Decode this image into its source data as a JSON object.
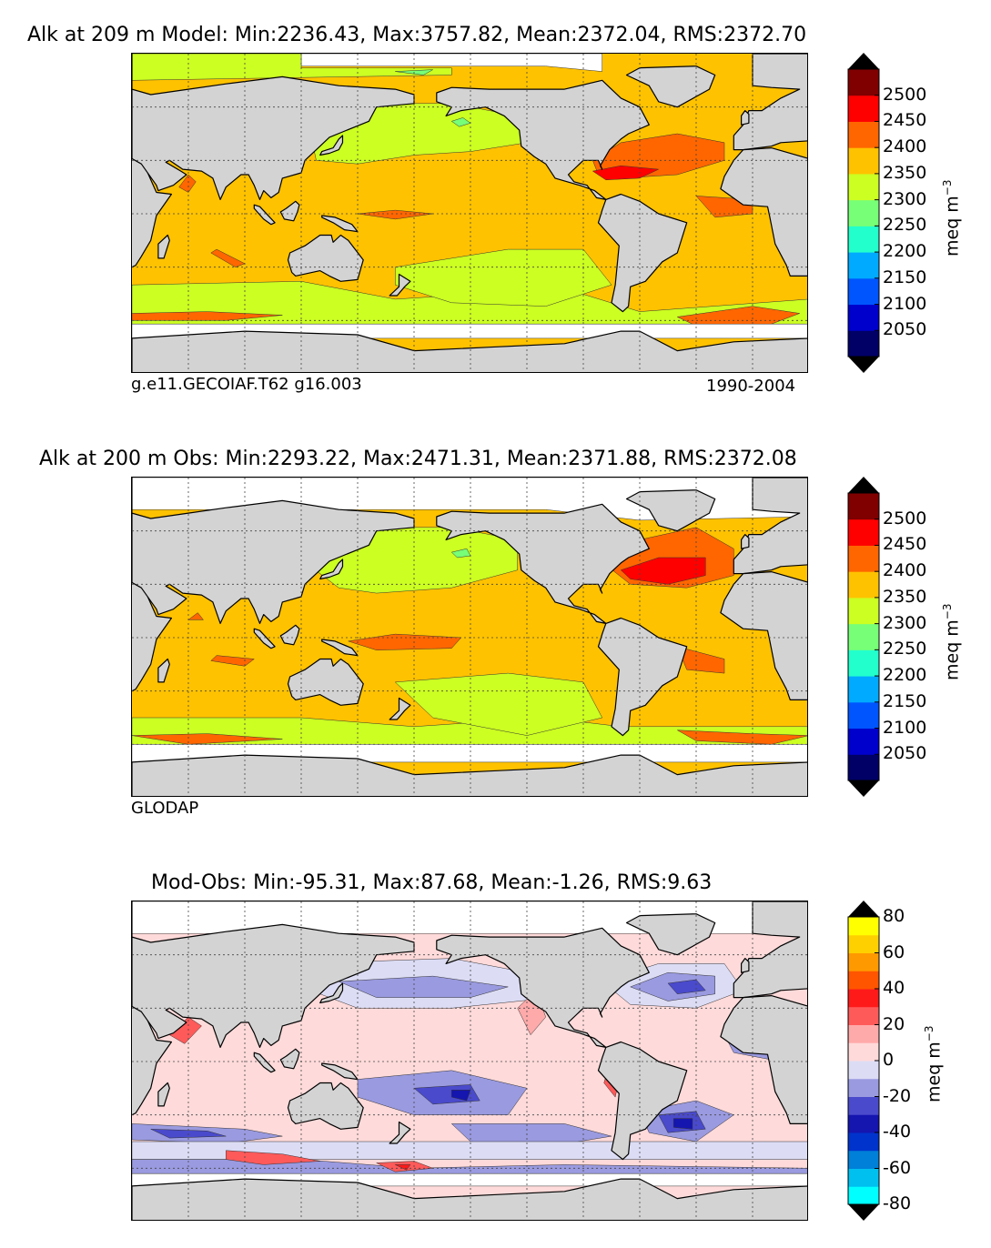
{
  "chart_data": [
    {
      "type": "heatmap",
      "title": "Alk at 209 m Model: Min:2236.43, Max:3757.82, Mean:2372.04, RMS:2372.70",
      "subtitle_left": "g.e11.GECOIAF.T62 g16.003",
      "subtitle_right": "1990-2004",
      "variable": "Alk",
      "depth": "209 m",
      "stats": {
        "min": 2236.43,
        "max": 3757.82,
        "mean": 2372.04,
        "rms": 2372.7
      },
      "colorbar": {
        "label": "meq m",
        "label_exp": "−3",
        "ticks": [
          "2500",
          "2450",
          "2400",
          "2350",
          "2300",
          "2250",
          "2200",
          "2150",
          "2100",
          "2050"
        ],
        "tick_values": [
          2500,
          2450,
          2400,
          2350,
          2300,
          2250,
          2200,
          2150,
          2100,
          2050
        ],
        "levels": [
          2000,
          2050,
          2100,
          2150,
          2200,
          2250,
          2300,
          2350,
          2400,
          2450,
          2500,
          2550
        ],
        "colors": [
          "#000066",
          "#0000cc",
          "#0055ff",
          "#00aaff",
          "#22ffcc",
          "#77ff77",
          "#ccff22",
          "#ffc200",
          "#ff6600",
          "#ff0000",
          "#800000"
        ],
        "extend_colors": {
          "under": "#000000",
          "over": "#000000"
        }
      }
    },
    {
      "type": "heatmap",
      "title": "Alk at 200 m Obs: Min:2293.22, Max:2471.31, Mean:2371.88, RMS:2372.08",
      "subtitle_left": "GLODAP",
      "variable": "Alk",
      "depth": "200 m",
      "stats": {
        "min": 2293.22,
        "max": 2471.31,
        "mean": 2371.88,
        "rms": 2372.08
      },
      "colorbar": {
        "label": "meq m",
        "label_exp": "−3",
        "ticks": [
          "2500",
          "2450",
          "2400",
          "2350",
          "2300",
          "2250",
          "2200",
          "2150",
          "2100",
          "2050"
        ],
        "tick_values": [
          2500,
          2450,
          2400,
          2350,
          2300,
          2250,
          2200,
          2150,
          2100,
          2050
        ],
        "levels": [
          2000,
          2050,
          2100,
          2150,
          2200,
          2250,
          2300,
          2350,
          2400,
          2450,
          2500,
          2550
        ],
        "colors": [
          "#000066",
          "#0000cc",
          "#0055ff",
          "#00aaff",
          "#22ffcc",
          "#77ff77",
          "#ccff22",
          "#ffc200",
          "#ff6600",
          "#ff0000",
          "#800000"
        ],
        "extend_colors": {
          "under": "#000000",
          "over": "#000000"
        }
      }
    },
    {
      "type": "heatmap",
      "title": "Mod-Obs: Min:-95.31, Max:87.68, Mean:-1.26, RMS:9.63",
      "stats": {
        "min": -95.31,
        "max": 87.68,
        "mean": -1.26,
        "rms": 9.63
      },
      "colorbar": {
        "label": "meq m",
        "label_exp": "−3",
        "ticks": [
          "80",
          "60",
          "40",
          "20",
          "0",
          "-20",
          "-40",
          "-60",
          "-80"
        ],
        "tick_values": [
          80,
          60,
          40,
          20,
          0,
          -20,
          -40,
          -60,
          -80
        ],
        "levels": [
          -80,
          -70,
          -60,
          -50,
          -40,
          -30,
          -20,
          -10,
          0,
          10,
          20,
          30,
          40,
          50,
          60,
          70,
          80
        ],
        "colors": [
          "#00ffff",
          "#00c0f0",
          "#0080d8",
          "#0033cc",
          "#1515b0",
          "#4a4acc",
          "#9a9ae0",
          "#dcdcf5",
          "#ffdada",
          "#ffaaaa",
          "#ff5a5a",
          "#ff1a1a",
          "#ff5500",
          "#ff9900",
          "#ffd000",
          "#ffff00"
        ],
        "extend_colors": {
          "under": "#000000",
          "over": "#000000"
        }
      }
    }
  ],
  "map_colors": {
    "land": "#d3d3d3",
    "coast": "#000000",
    "missing": "#ffffff",
    "grid": "#444444"
  }
}
